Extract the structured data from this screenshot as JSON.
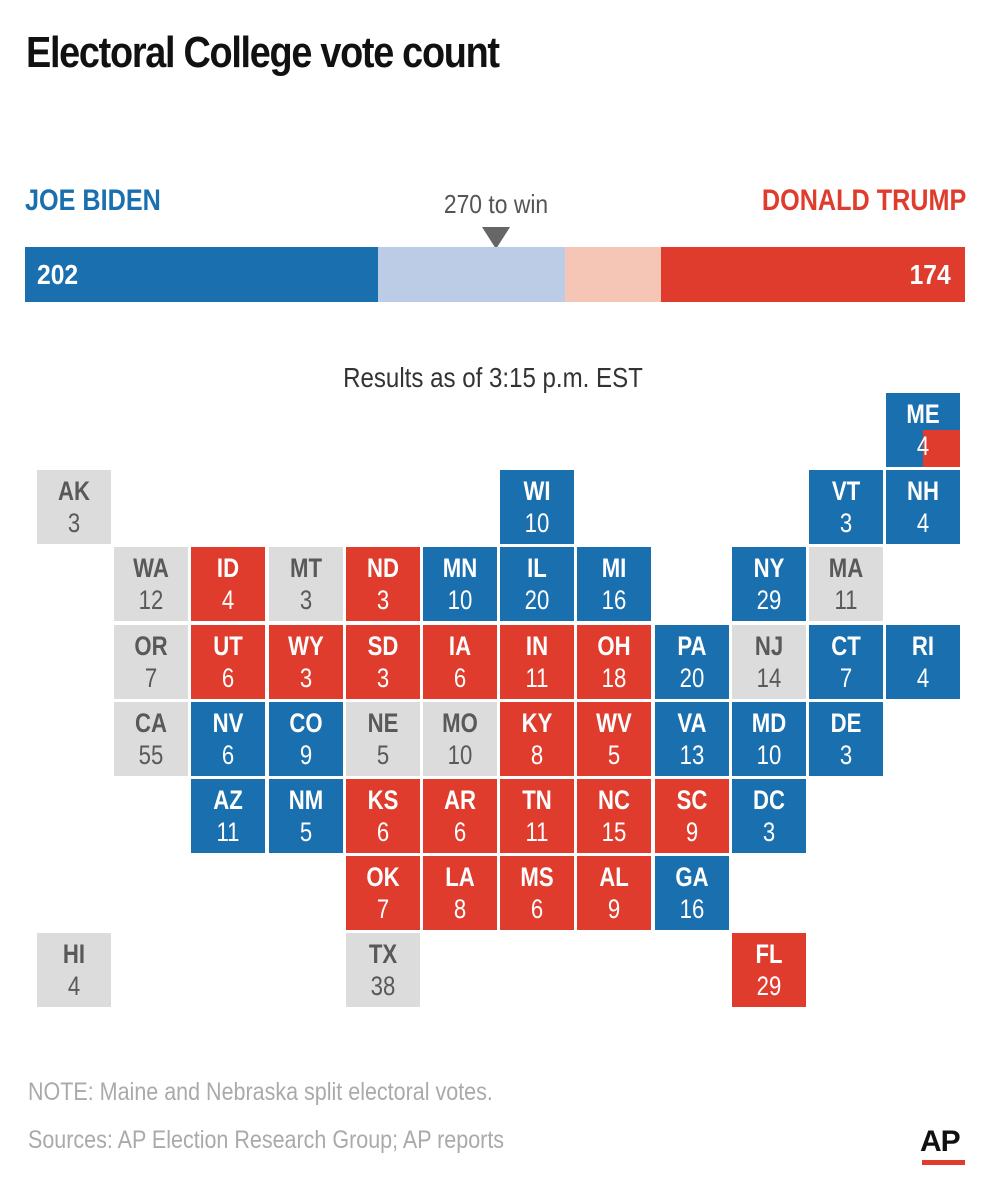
{
  "title": "Electoral College vote count",
  "colors": {
    "biden": "#1a6faf",
    "biden_light": "#bccce6",
    "trump": "#e03c2d",
    "trump_light": "#f5c6b5",
    "undecided": "#dcdcdc",
    "undecided_text": "#595959"
  },
  "chart_data": {
    "type": "table",
    "candidates": [
      {
        "name": "JOE BIDEN",
        "votes": 202,
        "color": "#1a6faf"
      },
      {
        "name": "DONALD TRUMP",
        "votes": 174,
        "color": "#e03c2d"
      }
    ],
    "total_votes": 538,
    "win_threshold": 270,
    "win_label": "270 to win",
    "bar_segments": [
      {
        "party": "biden",
        "start": 0,
        "end": 202
      },
      {
        "party": "biden_lean",
        "start": 202,
        "end": 309
      },
      {
        "party": "trump_lean",
        "start": 309,
        "end": 364
      },
      {
        "party": "trump",
        "start": 364,
        "end": 538
      }
    ],
    "as_of": "Results as of 3:15 p.m. EST",
    "states": [
      {
        "abbr": "ME",
        "ev": "4",
        "status": "biden",
        "split": "trump",
        "col": 11,
        "row": 0
      },
      {
        "abbr": "AK",
        "ev": "3",
        "status": "undecided",
        "col": 0,
        "row": 1
      },
      {
        "abbr": "WI",
        "ev": "10",
        "status": "biden",
        "col": 6,
        "row": 1
      },
      {
        "abbr": "VT",
        "ev": "3",
        "status": "biden",
        "col": 10,
        "row": 1
      },
      {
        "abbr": "NH",
        "ev": "4",
        "status": "biden",
        "col": 11,
        "row": 1
      },
      {
        "abbr": "WA",
        "ev": "12",
        "status": "undecided",
        "col": 1,
        "row": 2
      },
      {
        "abbr": "ID",
        "ev": "4",
        "status": "trump",
        "col": 2,
        "row": 2
      },
      {
        "abbr": "MT",
        "ev": "3",
        "status": "undecided",
        "col": 3,
        "row": 2
      },
      {
        "abbr": "ND",
        "ev": "3",
        "status": "trump",
        "col": 4,
        "row": 2
      },
      {
        "abbr": "MN",
        "ev": "10",
        "status": "biden",
        "col": 5,
        "row": 2
      },
      {
        "abbr": "IL",
        "ev": "20",
        "status": "biden",
        "col": 6,
        "row": 2
      },
      {
        "abbr": "MI",
        "ev": "16",
        "status": "biden",
        "col": 7,
        "row": 2
      },
      {
        "abbr": "NY",
        "ev": "29",
        "status": "biden",
        "col": 9,
        "row": 2
      },
      {
        "abbr": "MA",
        "ev": "11",
        "status": "undecided",
        "col": 10,
        "row": 2
      },
      {
        "abbr": "OR",
        "ev": "7",
        "status": "undecided",
        "col": 1,
        "row": 3
      },
      {
        "abbr": "UT",
        "ev": "6",
        "status": "trump",
        "col": 2,
        "row": 3
      },
      {
        "abbr": "WY",
        "ev": "3",
        "status": "trump",
        "col": 3,
        "row": 3
      },
      {
        "abbr": "SD",
        "ev": "3",
        "status": "trump",
        "col": 4,
        "row": 3
      },
      {
        "abbr": "IA",
        "ev": "6",
        "status": "trump",
        "col": 5,
        "row": 3
      },
      {
        "abbr": "IN",
        "ev": "11",
        "status": "trump",
        "col": 6,
        "row": 3
      },
      {
        "abbr": "OH",
        "ev": "18",
        "status": "trump",
        "col": 7,
        "row": 3
      },
      {
        "abbr": "PA",
        "ev": "20",
        "status": "biden",
        "col": 8,
        "row": 3
      },
      {
        "abbr": "NJ",
        "ev": "14",
        "status": "undecided",
        "col": 9,
        "row": 3
      },
      {
        "abbr": "CT",
        "ev": "7",
        "status": "biden",
        "col": 10,
        "row": 3
      },
      {
        "abbr": "RI",
        "ev": "4",
        "status": "biden",
        "col": 11,
        "row": 3
      },
      {
        "abbr": "CA",
        "ev": "55",
        "status": "undecided",
        "col": 1,
        "row": 4
      },
      {
        "abbr": "NV",
        "ev": "6",
        "status": "biden",
        "col": 2,
        "row": 4
      },
      {
        "abbr": "CO",
        "ev": "9",
        "status": "biden",
        "col": 3,
        "row": 4
      },
      {
        "abbr": "NE",
        "ev": "5",
        "status": "undecided",
        "col": 4,
        "row": 4
      },
      {
        "abbr": "MO",
        "ev": "10",
        "status": "undecided",
        "col": 5,
        "row": 4
      },
      {
        "abbr": "KY",
        "ev": "8",
        "status": "trump",
        "col": 6,
        "row": 4
      },
      {
        "abbr": "WV",
        "ev": "5",
        "status": "trump",
        "col": 7,
        "row": 4
      },
      {
        "abbr": "VA",
        "ev": "13",
        "status": "biden",
        "col": 8,
        "row": 4
      },
      {
        "abbr": "MD",
        "ev": "10",
        "status": "biden",
        "col": 9,
        "row": 4
      },
      {
        "abbr": "DE",
        "ev": "3",
        "status": "biden",
        "col": 10,
        "row": 4
      },
      {
        "abbr": "AZ",
        "ev": "11",
        "status": "biden",
        "col": 2,
        "row": 5
      },
      {
        "abbr": "NM",
        "ev": "5",
        "status": "biden",
        "col": 3,
        "row": 5
      },
      {
        "abbr": "KS",
        "ev": "6",
        "status": "trump",
        "col": 4,
        "row": 5
      },
      {
        "abbr": "AR",
        "ev": "6",
        "status": "trump",
        "col": 5,
        "row": 5
      },
      {
        "abbr": "TN",
        "ev": "11",
        "status": "trump",
        "col": 6,
        "row": 5
      },
      {
        "abbr": "NC",
        "ev": "15",
        "status": "trump",
        "col": 7,
        "row": 5
      },
      {
        "abbr": "SC",
        "ev": "9",
        "status": "trump",
        "col": 8,
        "row": 5
      },
      {
        "abbr": "DC",
        "ev": "3",
        "status": "biden",
        "col": 9,
        "row": 5
      },
      {
        "abbr": "OK",
        "ev": "7",
        "status": "trump",
        "col": 4,
        "row": 6
      },
      {
        "abbr": "LA",
        "ev": "8",
        "status": "trump",
        "col": 5,
        "row": 6
      },
      {
        "abbr": "MS",
        "ev": "6",
        "status": "trump",
        "col": 6,
        "row": 6
      },
      {
        "abbr": "AL",
        "ev": "9",
        "status": "trump",
        "col": 7,
        "row": 6
      },
      {
        "abbr": "GA",
        "ev": "16",
        "status": "biden",
        "col": 8,
        "row": 6
      },
      {
        "abbr": "HI",
        "ev": "4",
        "status": "undecided",
        "col": 0,
        "row": 7
      },
      {
        "abbr": "TX",
        "ev": "38",
        "status": "undecided",
        "col": 4,
        "row": 7
      },
      {
        "abbr": "FL",
        "ev": "29",
        "status": "trump",
        "col": 9,
        "row": 7
      }
    ]
  },
  "footer": {
    "note": "NOTE: Maine and Nebraska split electoral votes.",
    "sources": "Sources: AP Election Research Group; AP reports",
    "logo": "AP"
  }
}
